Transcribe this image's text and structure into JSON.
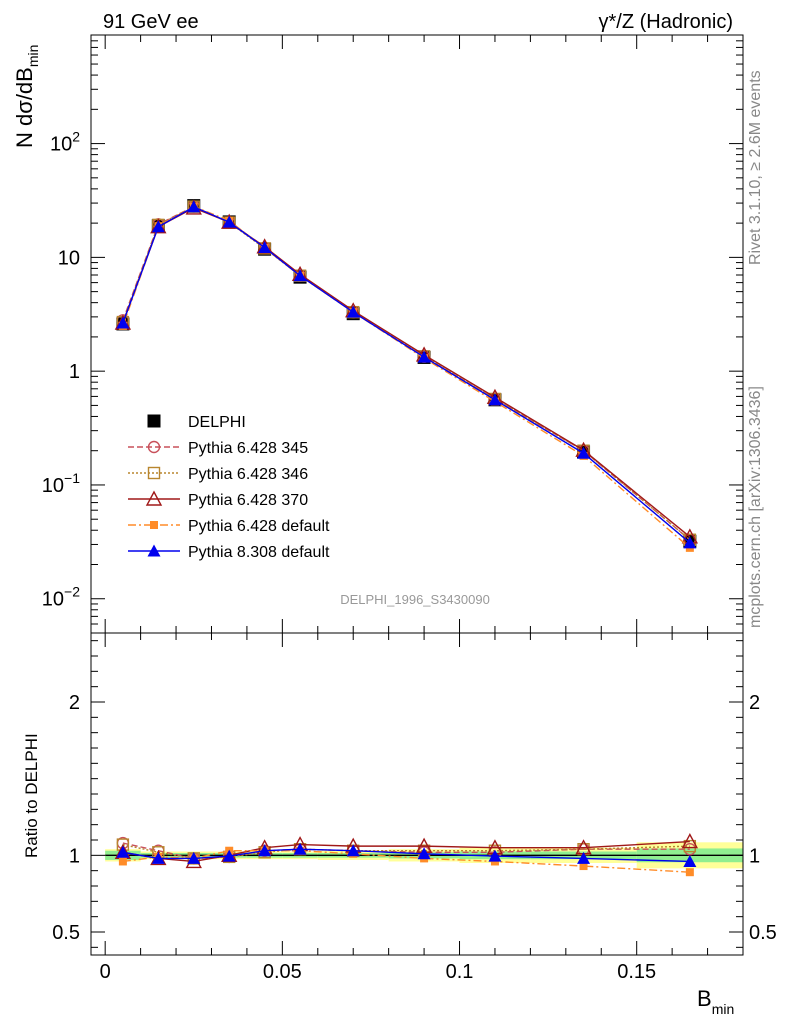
{
  "header": {
    "left": "91 GeV ee",
    "right": "γ*/Z (Hadronic)"
  },
  "side_notes": {
    "rivet": "Rivet 3.1.10, ≥ 2.6M events",
    "source": "mcplots.cern.ch [arXiv:1306.3436]"
  },
  "watermark": "DELPHI_1996_S3430090",
  "colors": {
    "data": "#000000",
    "p345": "#c8505a",
    "p346": "#b8862e",
    "p370": "#a01818",
    "p6default": "#ff8c28",
    "p8default": "#0000ee",
    "band_inner": "#90ee90",
    "band_outer": "#ffff99"
  },
  "chart_data": [
    {
      "type": "line",
      "ylabel": "N dσ/dB",
      "ylabel_sub": "min",
      "yscale": "log",
      "ylim": [
        0.005,
        900
      ],
      "xlim": [
        -0.004,
        0.18
      ],
      "y_ticks": [
        {
          "value": 0.01,
          "base": "10",
          "exp": "−2"
        },
        {
          "value": 0.1,
          "base": "10",
          "exp": "−1"
        },
        {
          "value": 1,
          "base": "1",
          "exp": ""
        },
        {
          "value": 10,
          "base": "10",
          "exp": ""
        },
        {
          "value": 100,
          "base": "10",
          "exp": "2"
        }
      ],
      "x": [
        0.005,
        0.015,
        0.025,
        0.035,
        0.045,
        0.055,
        0.07,
        0.09,
        0.11,
        0.135,
        0.165
      ],
      "legend_position": "left-middle",
      "series": [
        {
          "name": "DELPHI",
          "key": "data",
          "marker": "square-filled",
          "values": [
            2.6,
            19.0,
            28.5,
            20.5,
            11.8,
            6.7,
            3.2,
            1.32,
            0.56,
            0.195,
            0.032
          ]
        },
        {
          "name": "Pythia 6.428 345",
          "key": "p345",
          "marker": "circle-open",
          "dash": "6,3",
          "values": [
            2.8,
            19.5,
            28.0,
            20.3,
            12.1,
            6.9,
            3.3,
            1.34,
            0.57,
            0.2,
            0.033
          ]
        },
        {
          "name": "Pythia 6.428 346",
          "key": "p346",
          "marker": "square-open",
          "dash": "2,2",
          "values": [
            2.7,
            19.3,
            27.9,
            20.2,
            12.0,
            6.9,
            3.3,
            1.35,
            0.57,
            0.2,
            0.033
          ]
        },
        {
          "name": "Pythia 6.428 370",
          "key": "p370",
          "marker": "triangle-open",
          "dash": "",
          "values": [
            2.65,
            18.6,
            27.2,
            20.4,
            12.4,
            7.1,
            3.4,
            1.39,
            0.59,
            0.202,
            0.035
          ]
        },
        {
          "name": "Pythia 6.428 default",
          "key": "p6default",
          "marker": "square-small",
          "dash": "8,3,2,3",
          "values": [
            2.5,
            18.8,
            28.0,
            21.0,
            12.1,
            6.9,
            3.3,
            1.3,
            0.54,
            0.18,
            0.028
          ]
        },
        {
          "name": "Pythia 8.308 default",
          "key": "p8default",
          "marker": "triangle-filled",
          "dash": "",
          "values": [
            2.65,
            18.6,
            27.8,
            20.4,
            12.2,
            6.9,
            3.3,
            1.33,
            0.56,
            0.19,
            0.031
          ]
        }
      ]
    },
    {
      "type": "line",
      "xlabel": "B",
      "xlabel_sub": "min",
      "ylabel": "Ratio to DELPHI",
      "ylim": [
        0.35,
        2.45
      ],
      "y_ticks": [
        0.5,
        1,
        2
      ],
      "y_tick_labels": [
        "0.5",
        "1",
        "2"
      ],
      "x_ticks": [
        0,
        0.05,
        0.1,
        0.15
      ],
      "x_tick_labels": [
        "0",
        "0.05",
        "0.1",
        "0.15"
      ],
      "x": [
        0.005,
        0.015,
        0.025,
        0.035,
        0.045,
        0.055,
        0.07,
        0.09,
        0.11,
        0.135,
        0.165
      ],
      "bands": [
        {
          "x0": 0.0,
          "x1": 0.01,
          "inner": 0.03,
          "outer": 0.04
        },
        {
          "x0": 0.01,
          "x1": 0.02,
          "inner": 0.015,
          "outer": 0.025
        },
        {
          "x0": 0.02,
          "x1": 0.03,
          "inner": 0.015,
          "outer": 0.025
        },
        {
          "x0": 0.03,
          "x1": 0.04,
          "inner": 0.015,
          "outer": 0.025
        },
        {
          "x0": 0.04,
          "x1": 0.05,
          "inner": 0.015,
          "outer": 0.025
        },
        {
          "x0": 0.05,
          "x1": 0.06,
          "inner": 0.015,
          "outer": 0.025
        },
        {
          "x0": 0.06,
          "x1": 0.08,
          "inner": 0.015,
          "outer": 0.03
        },
        {
          "x0": 0.08,
          "x1": 0.1,
          "inner": 0.02,
          "outer": 0.04
        },
        {
          "x0": 0.1,
          "x1": 0.12,
          "inner": 0.025,
          "outer": 0.05
        },
        {
          "x0": 0.12,
          "x1": 0.15,
          "inner": 0.025,
          "outer": 0.05
        },
        {
          "x0": 0.15,
          "x1": 0.18,
          "inner": 0.045,
          "outer": 0.085
        }
      ],
      "series": [
        {
          "name": "Pythia 6.428 345",
          "key": "p345",
          "values": [
            1.08,
            1.03,
            0.98,
            0.99,
            1.03,
            1.04,
            1.03,
            1.02,
            1.02,
            1.04,
            1.04
          ]
        },
        {
          "name": "Pythia 6.428 346",
          "key": "p346",
          "values": [
            1.07,
            1.02,
            0.98,
            0.99,
            1.02,
            1.04,
            1.03,
            1.03,
            1.03,
            1.04,
            1.06
          ]
        },
        {
          "name": "Pythia 6.428 370",
          "key": "p370",
          "values": [
            1.02,
            0.98,
            0.96,
            1.0,
            1.05,
            1.07,
            1.06,
            1.06,
            1.05,
            1.05,
            1.09
          ]
        },
        {
          "name": "Pythia 6.428 default",
          "key": "p6default",
          "values": [
            0.96,
            0.99,
            0.98,
            1.03,
            1.03,
            1.03,
            1.01,
            0.98,
            0.96,
            0.93,
            0.89
          ]
        },
        {
          "name": "Pythia 8.308 default",
          "key": "p8default",
          "values": [
            1.02,
            0.98,
            0.98,
            0.995,
            1.03,
            1.04,
            1.03,
            1.01,
            0.995,
            0.98,
            0.96
          ]
        }
      ]
    }
  ]
}
